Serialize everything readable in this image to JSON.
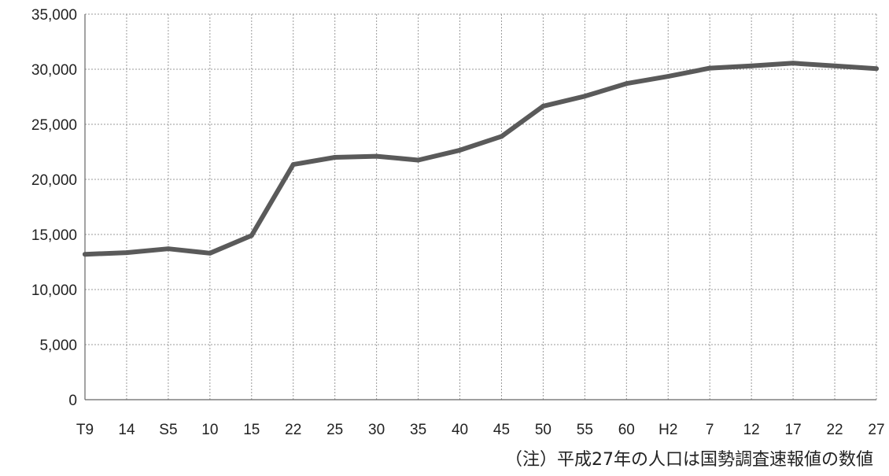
{
  "chart_data": {
    "type": "line",
    "categories": [
      "T9",
      "14",
      "S5",
      "10",
      "15",
      "22",
      "25",
      "30",
      "35",
      "40",
      "45",
      "50",
      "55",
      "60",
      "H2",
      "7",
      "12",
      "17",
      "22",
      "27"
    ],
    "series": [
      {
        "values": [
          13200,
          13350,
          13700,
          13300,
          14900,
          21350,
          22000,
          22100,
          21750,
          22650,
          23900,
          26650,
          27550,
          28700,
          29350,
          30100,
          30300,
          30550,
          30300,
          30050
        ]
      }
    ],
    "ylim": [
      0,
      35000
    ],
    "yticks": [
      "0",
      "5,000",
      "10,000",
      "15,000",
      "20,000",
      "25,000",
      "30,000",
      "35,000"
    ],
    "grid": true,
    "legend": "none",
    "note": "（注）平成27年の人口は国勢調査速報値の数値",
    "colors": {
      "line": "#5a5a5a",
      "grid": "#9a9a9a",
      "axis": "#666666"
    }
  }
}
